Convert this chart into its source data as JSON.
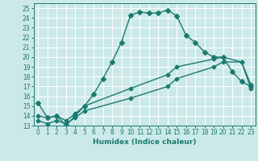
{
  "xlabel": "Humidex (Indice chaleur)",
  "background_color": "#cce9e9",
  "grid_color": "#ffffff",
  "line_color": "#1a7a6e",
  "xlim": [
    -0.5,
    23.5
  ],
  "ylim": [
    13,
    25.5
  ],
  "xticks": [
    0,
    1,
    2,
    3,
    4,
    5,
    6,
    7,
    8,
    9,
    10,
    11,
    12,
    13,
    14,
    15,
    16,
    17,
    18,
    19,
    20,
    21,
    22,
    23
  ],
  "yticks": [
    13,
    14,
    15,
    16,
    17,
    18,
    19,
    20,
    21,
    22,
    23,
    24,
    25
  ],
  "line1_x": [
    0,
    1,
    2,
    3,
    4,
    5,
    6,
    7,
    8,
    9,
    10,
    11,
    12,
    13,
    14,
    15,
    16,
    17,
    18,
    19,
    20,
    21,
    22,
    23
  ],
  "line1_y": [
    15.3,
    13.8,
    14.0,
    13.0,
    14.0,
    15.0,
    16.2,
    17.8,
    19.5,
    21.5,
    24.3,
    24.6,
    24.5,
    24.5,
    24.8,
    24.2,
    22.2,
    21.5,
    20.5,
    20.0,
    20.0,
    18.5,
    17.5,
    17.0
  ],
  "line2_x": [
    0,
    1,
    2,
    3,
    4,
    5,
    10,
    14,
    15,
    19,
    20,
    22,
    23
  ],
  "line2_y": [
    14.0,
    13.8,
    14.0,
    13.5,
    14.2,
    15.0,
    16.8,
    18.2,
    19.0,
    19.8,
    20.0,
    19.5,
    17.2
  ],
  "line3_x": [
    0,
    1,
    2,
    3,
    4,
    5,
    10,
    14,
    15,
    19,
    20,
    22,
    23
  ],
  "line3_y": [
    13.5,
    13.2,
    13.5,
    13.2,
    13.8,
    14.5,
    15.8,
    17.0,
    17.8,
    19.0,
    19.5,
    19.5,
    16.8
  ],
  "marker_size": 3,
  "linewidth": 1.0,
  "tick_fontsize": 5.5,
  "xlabel_fontsize": 6.5
}
